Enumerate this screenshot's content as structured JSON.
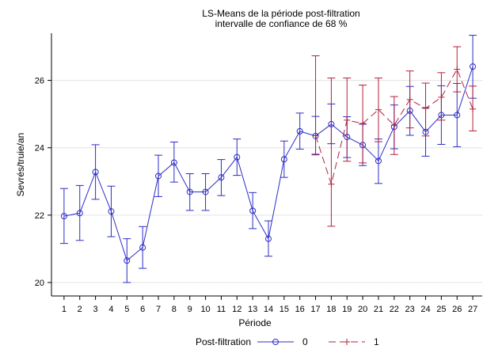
{
  "chart_data": {
    "type": "line",
    "title": [
      "LS-Means de la période post-filtration",
      "intervalle de confiance de 68 %"
    ],
    "xlabel": "Période",
    "ylabel": "Sevrés/truie/an",
    "xlim": [
      0.2,
      27.6
    ],
    "ylim": [
      19.6,
      27.4
    ],
    "yticks": [
      20,
      22,
      24,
      26
    ],
    "ytick_labels": [
      "20",
      "22",
      "24",
      "26"
    ],
    "x": [
      1,
      2,
      3,
      4,
      5,
      6,
      7,
      8,
      9,
      10,
      11,
      12,
      13,
      14,
      15,
      16,
      17,
      18,
      19,
      20,
      21,
      22,
      23,
      24,
      25,
      26,
      27
    ],
    "x_labels": [
      "1",
      "2",
      "3",
      "4",
      "5",
      "6",
      "7",
      "8",
      "9",
      "10",
      "11",
      "12",
      "13",
      "14",
      "15",
      "16",
      "17",
      "18",
      "19",
      "20",
      "21",
      "22",
      "23",
      "24",
      "25",
      "26",
      "27"
    ],
    "gridlines": "horizontal",
    "legend_title": "Post-filtration",
    "legend_position": "bottom",
    "series": [
      {
        "name": "0",
        "color": "#2d2dc8",
        "style": "solid",
        "marker": "circle",
        "x": [
          1,
          2,
          3,
          4,
          5,
          6,
          7,
          8,
          9,
          10,
          11,
          12,
          13,
          14,
          15,
          16,
          17,
          18,
          19,
          20,
          21,
          22,
          23,
          24,
          25,
          26,
          27
        ],
        "values": [
          21.97,
          22.06,
          23.28,
          22.11,
          20.65,
          21.04,
          23.16,
          23.56,
          22.69,
          22.69,
          23.12,
          23.72,
          22.13,
          21.3,
          23.66,
          24.49,
          24.35,
          24.7,
          24.32,
          24.08,
          23.61,
          24.62,
          25.1,
          24.47,
          24.97,
          24.97,
          26.41
        ],
        "lower": [
          21.16,
          21.25,
          22.47,
          21.36,
          20.0,
          20.42,
          22.55,
          22.98,
          22.14,
          22.14,
          22.58,
          23.18,
          21.6,
          20.78,
          23.12,
          23.96,
          23.79,
          24.12,
          23.71,
          23.47,
          22.94,
          23.97,
          24.37,
          23.75,
          24.1,
          24.03,
          25.47
        ],
        "upper": [
          22.79,
          22.88,
          24.09,
          22.86,
          21.3,
          21.66,
          23.78,
          24.17,
          23.23,
          23.23,
          23.65,
          24.26,
          22.67,
          21.83,
          24.2,
          25.03,
          24.93,
          25.3,
          24.92,
          24.7,
          24.26,
          25.27,
          25.82,
          25.19,
          25.84,
          25.91,
          27.34
        ]
      },
      {
        "name": "1",
        "color": "#b5203a",
        "style": "dashed",
        "marker": "plus",
        "x": [
          17,
          18,
          19,
          20,
          21,
          22,
          23,
          24,
          25,
          26,
          27
        ],
        "values": [
          24.36,
          22.92,
          24.82,
          24.72,
          25.13,
          24.67,
          25.43,
          25.17,
          25.5,
          26.33,
          25.15
        ],
        "lower": [
          23.81,
          21.67,
          23.6,
          23.55,
          24.18,
          23.8,
          24.59,
          24.35,
          24.82,
          25.66,
          24.5
        ],
        "upper": [
          26.73,
          26.07,
          26.07,
          25.86,
          26.07,
          25.52,
          26.28,
          25.92,
          26.23,
          27.0,
          25.83
        ]
      }
    ]
  }
}
